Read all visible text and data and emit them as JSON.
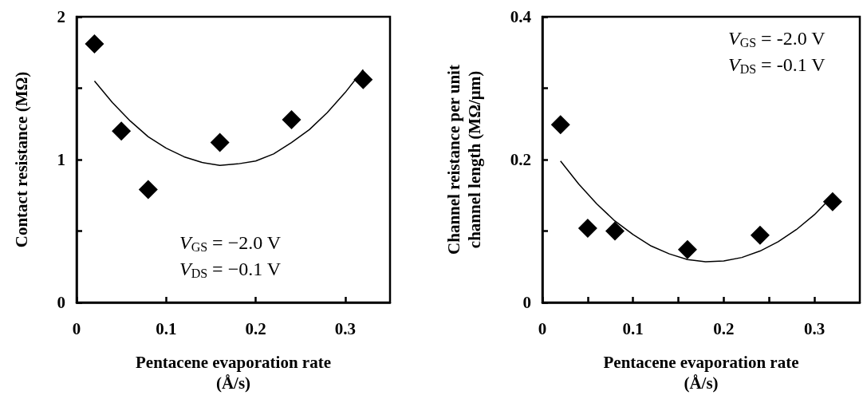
{
  "chart_data": [
    {
      "type": "scatter",
      "xlabel": "Pentacene evaporation rate\n(Å/s)",
      "ylabel": "Contact resistance (MΩ)",
      "xlim": [
        0,
        0.35
      ],
      "xticks": [
        0,
        0.1,
        0.2,
        0.3
      ],
      "ylim": [
        0,
        2
      ],
      "yticks": [
        0,
        {
          "value": 0.5,
          "label": null
        },
        1,
        {
          "value": 1.5,
          "label": null
        },
        2
      ],
      "grid": false,
      "annotations": [
        "V$_{GS}$ = −2.0 V",
        "V$_{DS}$ = −0.1 V"
      ],
      "series": [
        {
          "color": "#000000",
          "marker": "diamond",
          "x": [
            0.02,
            0.05,
            0.08,
            0.16,
            0.24,
            0.32
          ],
          "values": [
            1.81,
            1.2,
            0.79,
            1.12,
            1.28,
            1.56
          ]
        },
        {
          "type": "line",
          "color": "#000000",
          "marker": "none",
          "line_style": "solid",
          "x": [
            0.02,
            0.04,
            0.06,
            0.08,
            0.1,
            0.12,
            0.14,
            0.16,
            0.18,
            0.2,
            0.22,
            0.24,
            0.26,
            0.28,
            0.3,
            0.32
          ],
          "values": [
            1.55,
            1.4,
            1.27,
            1.16,
            1.08,
            1.02,
            0.98,
            0.96,
            0.97,
            0.99,
            1.04,
            1.12,
            1.21,
            1.33,
            1.47,
            1.63
          ]
        }
      ]
    },
    {
      "type": "scatter",
      "xlabel": "Pentacene evaporation rate\n(Å/s)",
      "ylabel": "Channel reistance per unit\nchannel length (MΩ/μm)",
      "xlim": [
        0,
        0.35
      ],
      "xticks": [
        0,
        {
          "value": 0.05,
          "label": null
        },
        0.1,
        {
          "value": 0.15,
          "label": null
        },
        0.2,
        {
          "value": 0.25,
          "label": null
        },
        0.3
      ],
      "ylim": [
        0,
        0.4
      ],
      "yticks": [
        0,
        {
          "value": 0.1,
          "label": null
        },
        0.2,
        {
          "value": 0.3,
          "label": null
        },
        0.4
      ],
      "grid": false,
      "annotations": [
        "V$_{GS}$ = -2.0 V",
        "V$_{DS}$ = -0.1 V"
      ],
      "series": [
        {
          "color": "#000000",
          "marker": "diamond",
          "x": [
            0.02,
            0.05,
            0.08,
            0.16,
            0.24,
            0.32
          ],
          "values": [
            0.249,
            0.104,
            0.1,
            0.074,
            0.094,
            0.141
          ]
        },
        {
          "type": "line",
          "color": "#000000",
          "marker": "none",
          "line_style": "solid",
          "x": [
            0.02,
            0.04,
            0.06,
            0.08,
            0.1,
            0.12,
            0.14,
            0.16,
            0.18,
            0.2,
            0.22,
            0.24,
            0.26,
            0.28,
            0.3,
            0.32
          ],
          "values": [
            0.198,
            0.166,
            0.138,
            0.114,
            0.095,
            0.079,
            0.068,
            0.06,
            0.057,
            0.058,
            0.063,
            0.072,
            0.085,
            0.102,
            0.123,
            0.149
          ]
        }
      ]
    }
  ]
}
